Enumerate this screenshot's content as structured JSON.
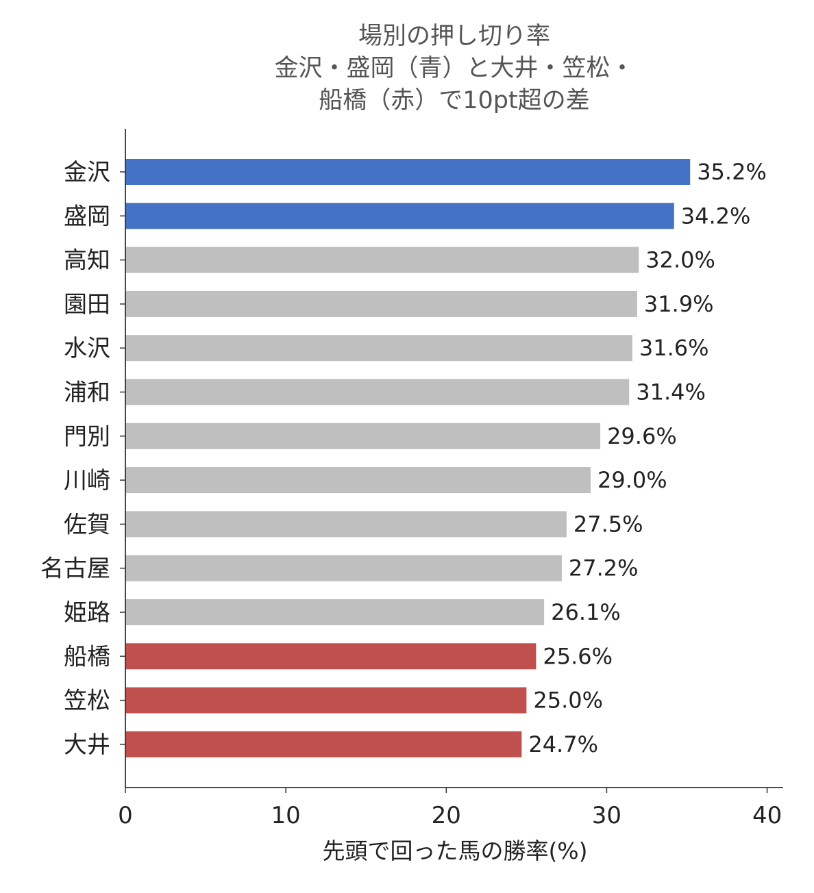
{
  "chart_data": {
    "type": "bar",
    "orientation": "horizontal",
    "title_lines": [
      "場別の押し切り率",
      "金沢・盛岡（青）と大井・笠松・",
      "船橋（赤）で10pt超の差"
    ],
    "categories": [
      "金沢",
      "盛岡",
      "高知",
      "園田",
      "水沢",
      "浦和",
      "門別",
      "川崎",
      "佐賀",
      "名古屋",
      "姫路",
      "船橋",
      "笠松",
      "大井"
    ],
    "values": [
      35.2,
      34.2,
      32.0,
      31.9,
      31.6,
      31.4,
      29.6,
      29.0,
      27.5,
      27.2,
      26.1,
      25.6,
      25.0,
      24.7
    ],
    "value_labels": [
      "35.2%",
      "34.2%",
      "32.0%",
      "31.9%",
      "31.6%",
      "31.4%",
      "29.6%",
      "29.0%",
      "27.5%",
      "27.2%",
      "26.1%",
      "25.6%",
      "25.0%",
      "24.7%"
    ],
    "bar_colors": [
      "#4472C4",
      "#4472C4",
      "#BFBFBF",
      "#BFBFBF",
      "#BFBFBF",
      "#BFBFBF",
      "#BFBFBF",
      "#BFBFBF",
      "#BFBFBF",
      "#BFBFBF",
      "#BFBFBF",
      "#C0504D",
      "#C0504D",
      "#C0504D"
    ],
    "xlabel": "先頭で回った馬の勝率(%)",
    "ylabel": "",
    "xlim": [
      0,
      41
    ],
    "xticks": [
      0,
      10,
      20,
      30,
      40
    ],
    "xtick_labels": [
      "0",
      "10",
      "20",
      "30",
      "40"
    ],
    "grid": false,
    "legend": "none"
  }
}
